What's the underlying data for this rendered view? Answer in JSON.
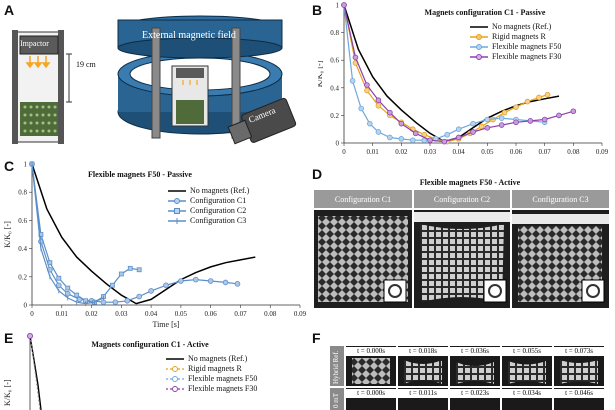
{
  "panels": {
    "A": {
      "label": "A",
      "impactor": "Impactor",
      "height": "19 cm",
      "field": "External magnetic field",
      "camera": "Camera"
    },
    "B": {
      "label": "B",
      "title": "Magnets configuration C1 - Passive",
      "ylabel": "K/K₀ [-]",
      "legend": [
        "No magnets (Ref.)",
        "Rigid magnets R",
        "Flexible magnets F50",
        "Flexible magnets F30"
      ],
      "yticks": [
        "0",
        "0.2",
        "0.4",
        "0.6",
        "0.8",
        "1"
      ],
      "xticks": [
        "0",
        "0.01",
        "0.02",
        "0.03",
        "0.04",
        "0.05",
        "0.06",
        "0.07",
        "0.08",
        "0.09"
      ]
    },
    "C": {
      "label": "C",
      "title": "Flexible magnets F50 - Passive",
      "ylabel": "K/K₀ [-]",
      "xlabel": "Time [s]",
      "legend": [
        "No magnets (Ref.)",
        "Configuration C1",
        "Configuration C2",
        "Configuration C3"
      ],
      "yticks": [
        "0",
        "0.2",
        "0.4",
        "0.6",
        "0.8",
        "1"
      ],
      "xticks": [
        "0",
        "0.01",
        "0.02",
        "0.03",
        "0.04",
        "0.05",
        "0.06",
        "0.07",
        "0.08",
        "0.09"
      ]
    },
    "D": {
      "label": "D",
      "title": "Flexible magnets F50 - Active",
      "configs": [
        "Configuration C1",
        "Configuration C2",
        "Configuration C3"
      ]
    },
    "E": {
      "label": "E",
      "title": "Magnets configuration C1 - Active",
      "ylabel": "K/K₀ [-]",
      "legend": [
        "No magnets (Ref.)",
        "Rigid magnets R",
        "Flexible magnets F50",
        "Flexible magnets F30"
      ]
    },
    "F": {
      "label": "F",
      "row1_label": "Hybrid Ref.",
      "row2_label": "0 mT",
      "row1_times": [
        "t = 0.000s",
        "t = 0.018s",
        "t = 0.036s",
        "t = 0.055s",
        "t = 0.073s"
      ],
      "row2_times": [
        "t = 0.000s",
        "t = 0.011s",
        "t = 0.023s",
        "t = 0.034s",
        "t = 0.046s"
      ]
    }
  },
  "chart_data": [
    {
      "panel": "B",
      "type": "line",
      "title": "Magnets configuration C1 - Passive",
      "xlabel": "",
      "ylabel": "K/K₀ [-]",
      "xlim": [
        0,
        0.09
      ],
      "ylim": [
        0,
        1
      ],
      "series": [
        {
          "name": "No magnets (Ref.)",
          "color": "#000000",
          "marker": "none",
          "x": [
            0,
            0.005,
            0.01,
            0.015,
            0.02,
            0.025,
            0.03,
            0.035,
            0.04,
            0.045,
            0.05,
            0.055,
            0.06,
            0.065,
            0.07,
            0.075
          ],
          "y": [
            1,
            0.68,
            0.48,
            0.34,
            0.24,
            0.15,
            0.07,
            0.01,
            0.04,
            0.11,
            0.18,
            0.23,
            0.27,
            0.3,
            0.32,
            0.34
          ]
        },
        {
          "name": "Rigid magnets R",
          "color": "#e8a21a",
          "marker": "circle",
          "x": [
            0,
            0.004,
            0.008,
            0.012,
            0.016,
            0.02,
            0.024,
            0.028,
            0.032,
            0.036,
            0.04,
            0.044,
            0.048,
            0.052,
            0.056,
            0.06,
            0.064,
            0.068,
            0.071
          ],
          "y": [
            1,
            0.58,
            0.38,
            0.27,
            0.2,
            0.15,
            0.1,
            0.06,
            0.03,
            0.01,
            0.03,
            0.07,
            0.12,
            0.17,
            0.22,
            0.26,
            0.3,
            0.33,
            0.35
          ]
        },
        {
          "name": "Flexible magnets F50",
          "color": "#6ea8dc",
          "marker": "circle",
          "x": [
            0,
            0.003,
            0.006,
            0.009,
            0.012,
            0.016,
            0.02,
            0.024,
            0.028,
            0.032,
            0.036,
            0.04,
            0.045,
            0.05,
            0.055,
            0.06,
            0.065,
            0.07
          ],
          "y": [
            1,
            0.45,
            0.25,
            0.14,
            0.08,
            0.04,
            0.03,
            0.02,
            0.02,
            0.03,
            0.06,
            0.1,
            0.14,
            0.17,
            0.18,
            0.17,
            0.16,
            0.15
          ]
        },
        {
          "name": "Flexible magnets F30",
          "color": "#8e3fb0",
          "marker": "circle",
          "x": [
            0,
            0.004,
            0.008,
            0.012,
            0.016,
            0.02,
            0.025,
            0.03,
            0.035,
            0.04,
            0.045,
            0.05,
            0.055,
            0.06,
            0.065,
            0.07,
            0.075,
            0.08
          ],
          "y": [
            1,
            0.62,
            0.42,
            0.31,
            0.22,
            0.14,
            0.07,
            0.02,
            0.01,
            0.04,
            0.08,
            0.11,
            0.13,
            0.15,
            0.16,
            0.17,
            0.2,
            0.23
          ]
        }
      ]
    },
    {
      "panel": "C",
      "type": "line",
      "title": "Flexible magnets F50 - Passive",
      "xlabel": "Time [s]",
      "ylabel": "K/K₀ [-]",
      "xlim": [
        0,
        0.09
      ],
      "ylim": [
        0,
        1
      ],
      "series": [
        {
          "name": "No magnets (Ref.)",
          "color": "#000000",
          "marker": "none",
          "x": [
            0,
            0.005,
            0.01,
            0.015,
            0.02,
            0.025,
            0.03,
            0.035,
            0.04,
            0.045,
            0.05,
            0.055,
            0.06,
            0.065,
            0.07,
            0.075
          ],
          "y": [
            1,
            0.68,
            0.48,
            0.34,
            0.24,
            0.15,
            0.07,
            0.01,
            0.04,
            0.11,
            0.18,
            0.23,
            0.27,
            0.3,
            0.32,
            0.34
          ]
        },
        {
          "name": "Configuration C1",
          "color": "#5b8fc9",
          "marker": "circle",
          "x": [
            0,
            0.003,
            0.006,
            0.009,
            0.012,
            0.016,
            0.02,
            0.024,
            0.028,
            0.032,
            0.036,
            0.04,
            0.045,
            0.05,
            0.055,
            0.06,
            0.065,
            0.069
          ],
          "y": [
            1,
            0.45,
            0.25,
            0.14,
            0.08,
            0.04,
            0.03,
            0.02,
            0.02,
            0.03,
            0.06,
            0.1,
            0.14,
            0.17,
            0.18,
            0.17,
            0.16,
            0.15
          ]
        },
        {
          "name": "Configuration C2",
          "color": "#5b8fc9",
          "marker": "square",
          "x": [
            0,
            0.003,
            0.006,
            0.009,
            0.012,
            0.015,
            0.018,
            0.021,
            0.024,
            0.027,
            0.03,
            0.033,
            0.036
          ],
          "y": [
            1,
            0.5,
            0.3,
            0.19,
            0.12,
            0.07,
            0.03,
            0.02,
            0.06,
            0.14,
            0.22,
            0.26,
            0.25
          ]
        },
        {
          "name": "Configuration C3",
          "color": "#5b8fc9",
          "marker": "plus",
          "x": [
            0,
            0.003,
            0.006,
            0.009,
            0.012,
            0.015,
            0.018,
            0.021,
            0.024
          ],
          "y": [
            1,
            0.4,
            0.2,
            0.1,
            0.05,
            0.02,
            0.01,
            0.02,
            0.05
          ]
        }
      ]
    },
    {
      "panel": "E",
      "type": "line",
      "title": "Magnets configuration C1 - Active",
      "ylabel": "K/K₀ [-]",
      "series": [
        {
          "name": "No magnets (Ref.)",
          "color": "#000000"
        },
        {
          "name": "Rigid magnets R",
          "color": "#e8a21a"
        },
        {
          "name": "Flexible magnets F50",
          "color": "#6ea8dc"
        },
        {
          "name": "Flexible magnets F30",
          "color": "#8e3fb0"
        }
      ]
    }
  ]
}
